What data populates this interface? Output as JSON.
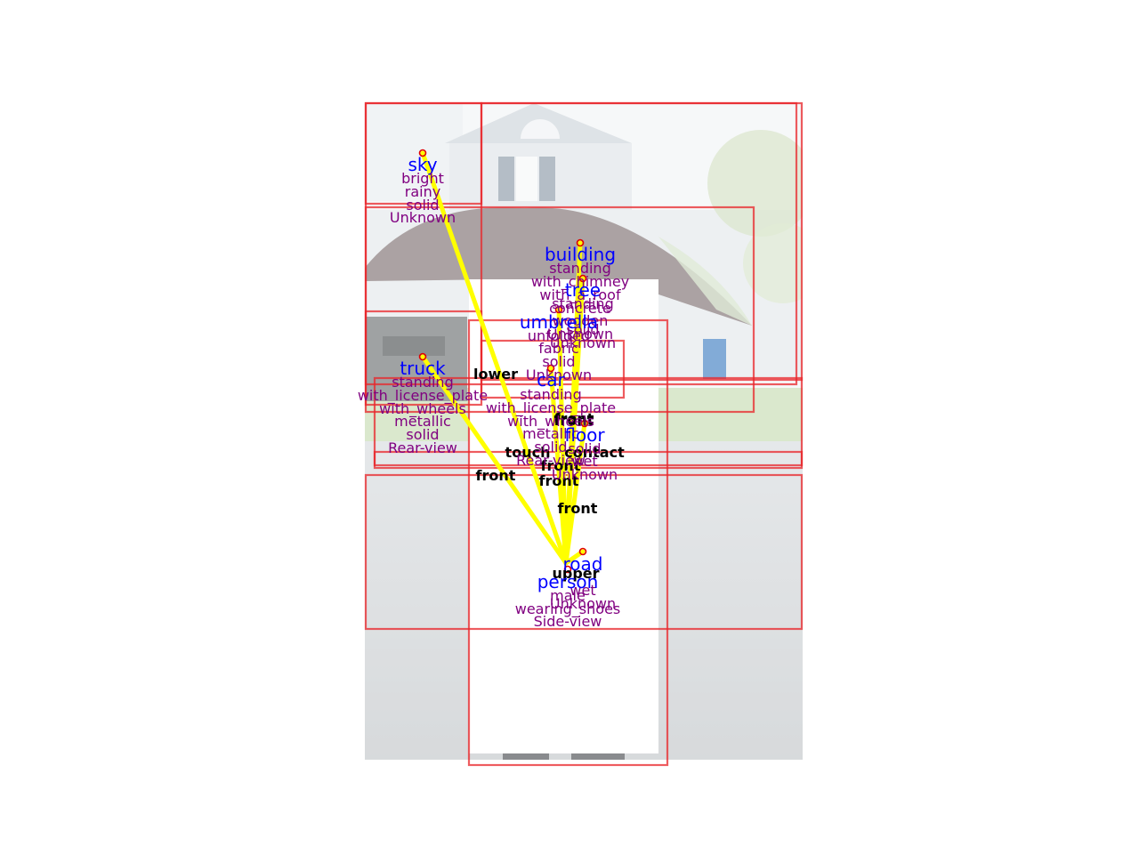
{
  "scene": {
    "description_colors": {
      "sky": "#f2f4f6",
      "house": "#dde3e8",
      "lawn": "#b9d8a4",
      "street": "#c9cdd0",
      "umbrella": "#7e7172"
    }
  },
  "objects": [
    {
      "id": "sky",
      "name": "sky",
      "attrs": [
        "bright",
        "rainy",
        "solid",
        "Unknown"
      ]
    },
    {
      "id": "building",
      "name": "building",
      "attrs": [
        "standing",
        "with_chimney",
        "with_a_roof",
        "concrete",
        "wooden",
        "Unknown"
      ]
    },
    {
      "id": "tree",
      "name": "tree",
      "attrs": [
        "standing",
        "solid",
        "Unknown"
      ]
    },
    {
      "id": "umbrella",
      "name": "umbrella",
      "attrs": [
        "unfolded",
        "fabric",
        "solid",
        "Unknown"
      ]
    },
    {
      "id": "truck",
      "name": "truck",
      "attrs": [
        "standing",
        "with_license_plate",
        "with_wheels",
        "metallic",
        "solid",
        "Rear-view"
      ]
    },
    {
      "id": "car",
      "name": "car",
      "attrs": [
        "standing",
        "with_license_plate",
        "with_wheels",
        "metallic",
        "solid",
        "Rear-view"
      ]
    },
    {
      "id": "floor",
      "name": "floor",
      "attrs": [
        "wet",
        "solid",
        "Unknown"
      ]
    },
    {
      "id": "road",
      "name": "road",
      "attrs": [
        "wet",
        "Unknown"
      ]
    },
    {
      "id": "person",
      "name": "person",
      "attrs": [
        "male",
        "wearing_shoes",
        "Side-view"
      ]
    }
  ],
  "relations": [
    {
      "from": "person",
      "to": "sky",
      "label": "front"
    },
    {
      "from": "person",
      "to": "building",
      "label": "front"
    },
    {
      "from": "person",
      "to": "tree",
      "label": "front"
    },
    {
      "from": "person",
      "to": "umbrella",
      "label": "lower"
    },
    {
      "from": "person",
      "to": "truck",
      "label": "front"
    },
    {
      "from": "person",
      "to": "car",
      "label": "front"
    },
    {
      "from": "person",
      "to": "floor",
      "label": "touch"
    },
    {
      "from": "person",
      "to": "floor",
      "label": "contact"
    },
    {
      "from": "person",
      "to": "road",
      "label": "front"
    },
    {
      "from": "person",
      "to": "road",
      "label": "upper"
    }
  ]
}
